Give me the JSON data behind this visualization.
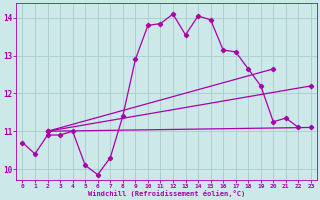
{
  "x": [
    0,
    1,
    2,
    3,
    4,
    5,
    6,
    7,
    8,
    9,
    10,
    11,
    12,
    13,
    14,
    15,
    16,
    17,
    18,
    19,
    20,
    21,
    22,
    23
  ],
  "line_main": [
    10.7,
    10.4,
    10.9,
    10.9,
    11.0,
    10.1,
    9.85,
    10.3,
    11.4,
    12.9,
    13.8,
    13.85,
    14.1,
    13.55,
    14.05,
    13.95,
    13.15,
    13.1,
    12.65,
    12.2,
    11.25,
    11.35,
    11.1,
    null
  ],
  "line_flat": [
    [
      2,
      11.0
    ],
    [
      23,
      11.1
    ]
  ],
  "line_mid": [
    [
      2,
      11.0
    ],
    [
      23,
      12.2
    ]
  ],
  "line_steep": [
    [
      2,
      11.0
    ],
    [
      20,
      12.65
    ]
  ],
  "bg_color": "#cce8e8",
  "grid_color": "#aacccc",
  "line_color": "#aa00aa",
  "marker": "D",
  "markersize": 2.2,
  "linewidth": 0.9,
  "xlabel": "Windchill (Refroidissement éolien,°C)",
  "ylim": [
    9.7,
    14.4
  ],
  "xlim": [
    -0.5,
    23.5
  ],
  "yticks": [
    10,
    11,
    12,
    13,
    14
  ],
  "xticks": [
    0,
    1,
    2,
    3,
    4,
    5,
    6,
    7,
    8,
    9,
    10,
    11,
    12,
    13,
    14,
    15,
    16,
    17,
    18,
    19,
    20,
    21,
    22,
    23
  ]
}
